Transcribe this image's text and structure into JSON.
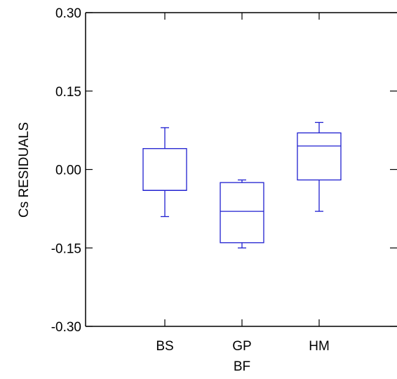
{
  "chart_data": {
    "type": "box",
    "title": "",
    "xlabel": "BF",
    "ylabel": "Cs RESIDUALS",
    "ylim": [
      -0.3,
      0.3
    ],
    "yticks": [
      "-0.30",
      "-0.15",
      "0.00",
      "0.15",
      "0.30"
    ],
    "ytick_values": [
      -0.3,
      -0.15,
      0.0,
      0.15,
      0.3
    ],
    "categories": [
      "BS",
      "GP",
      "HM"
    ],
    "boxes": [
      {
        "category": "BS",
        "whisker_low": -0.09,
        "q1": -0.04,
        "median": -0.04,
        "q3": 0.04,
        "whisker_high": 0.08
      },
      {
        "category": "GP",
        "whisker_low": -0.15,
        "q1": -0.14,
        "median": -0.08,
        "q3": -0.025,
        "whisker_high": -0.02
      },
      {
        "category": "HM",
        "whisker_low": -0.08,
        "q1": -0.02,
        "median": 0.045,
        "q3": 0.07,
        "whisker_high": 0.09
      }
    ],
    "box_color": "#1f1fd0",
    "axis_color": "#000000",
    "grid": false
  }
}
